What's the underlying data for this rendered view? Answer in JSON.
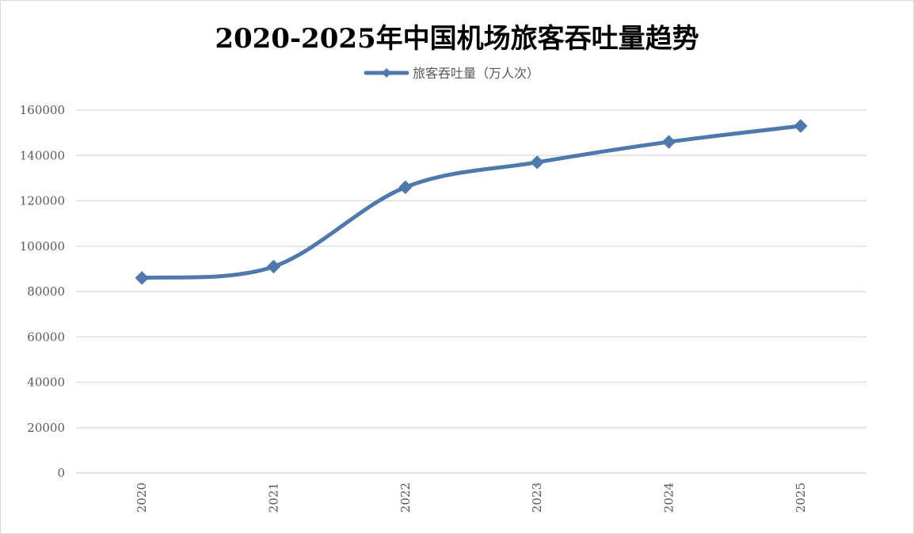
{
  "chart_data": {
    "type": "line",
    "title": "2020-2025年中国机场旅客吞吐量趋势",
    "xlabel": "",
    "ylabel": "",
    "categories": [
      "2020",
      "2021",
      "2022",
      "2023",
      "2024",
      "2025"
    ],
    "series": [
      {
        "name": "旅客吞吐量（万人次）",
        "values": [
          86000,
          91000,
          126000,
          137000,
          146000,
          153000
        ],
        "color": "#4e79ad",
        "marker": "diamond",
        "smooth": true
      }
    ],
    "ylim": [
      0,
      160000
    ],
    "yticks": [
      "0",
      "20000",
      "40000",
      "60000",
      "80000",
      "100000",
      "120000",
      "140000",
      "160000"
    ],
    "grid": true,
    "legend_position": "top",
    "gridline_color": "#d9d9d9"
  }
}
